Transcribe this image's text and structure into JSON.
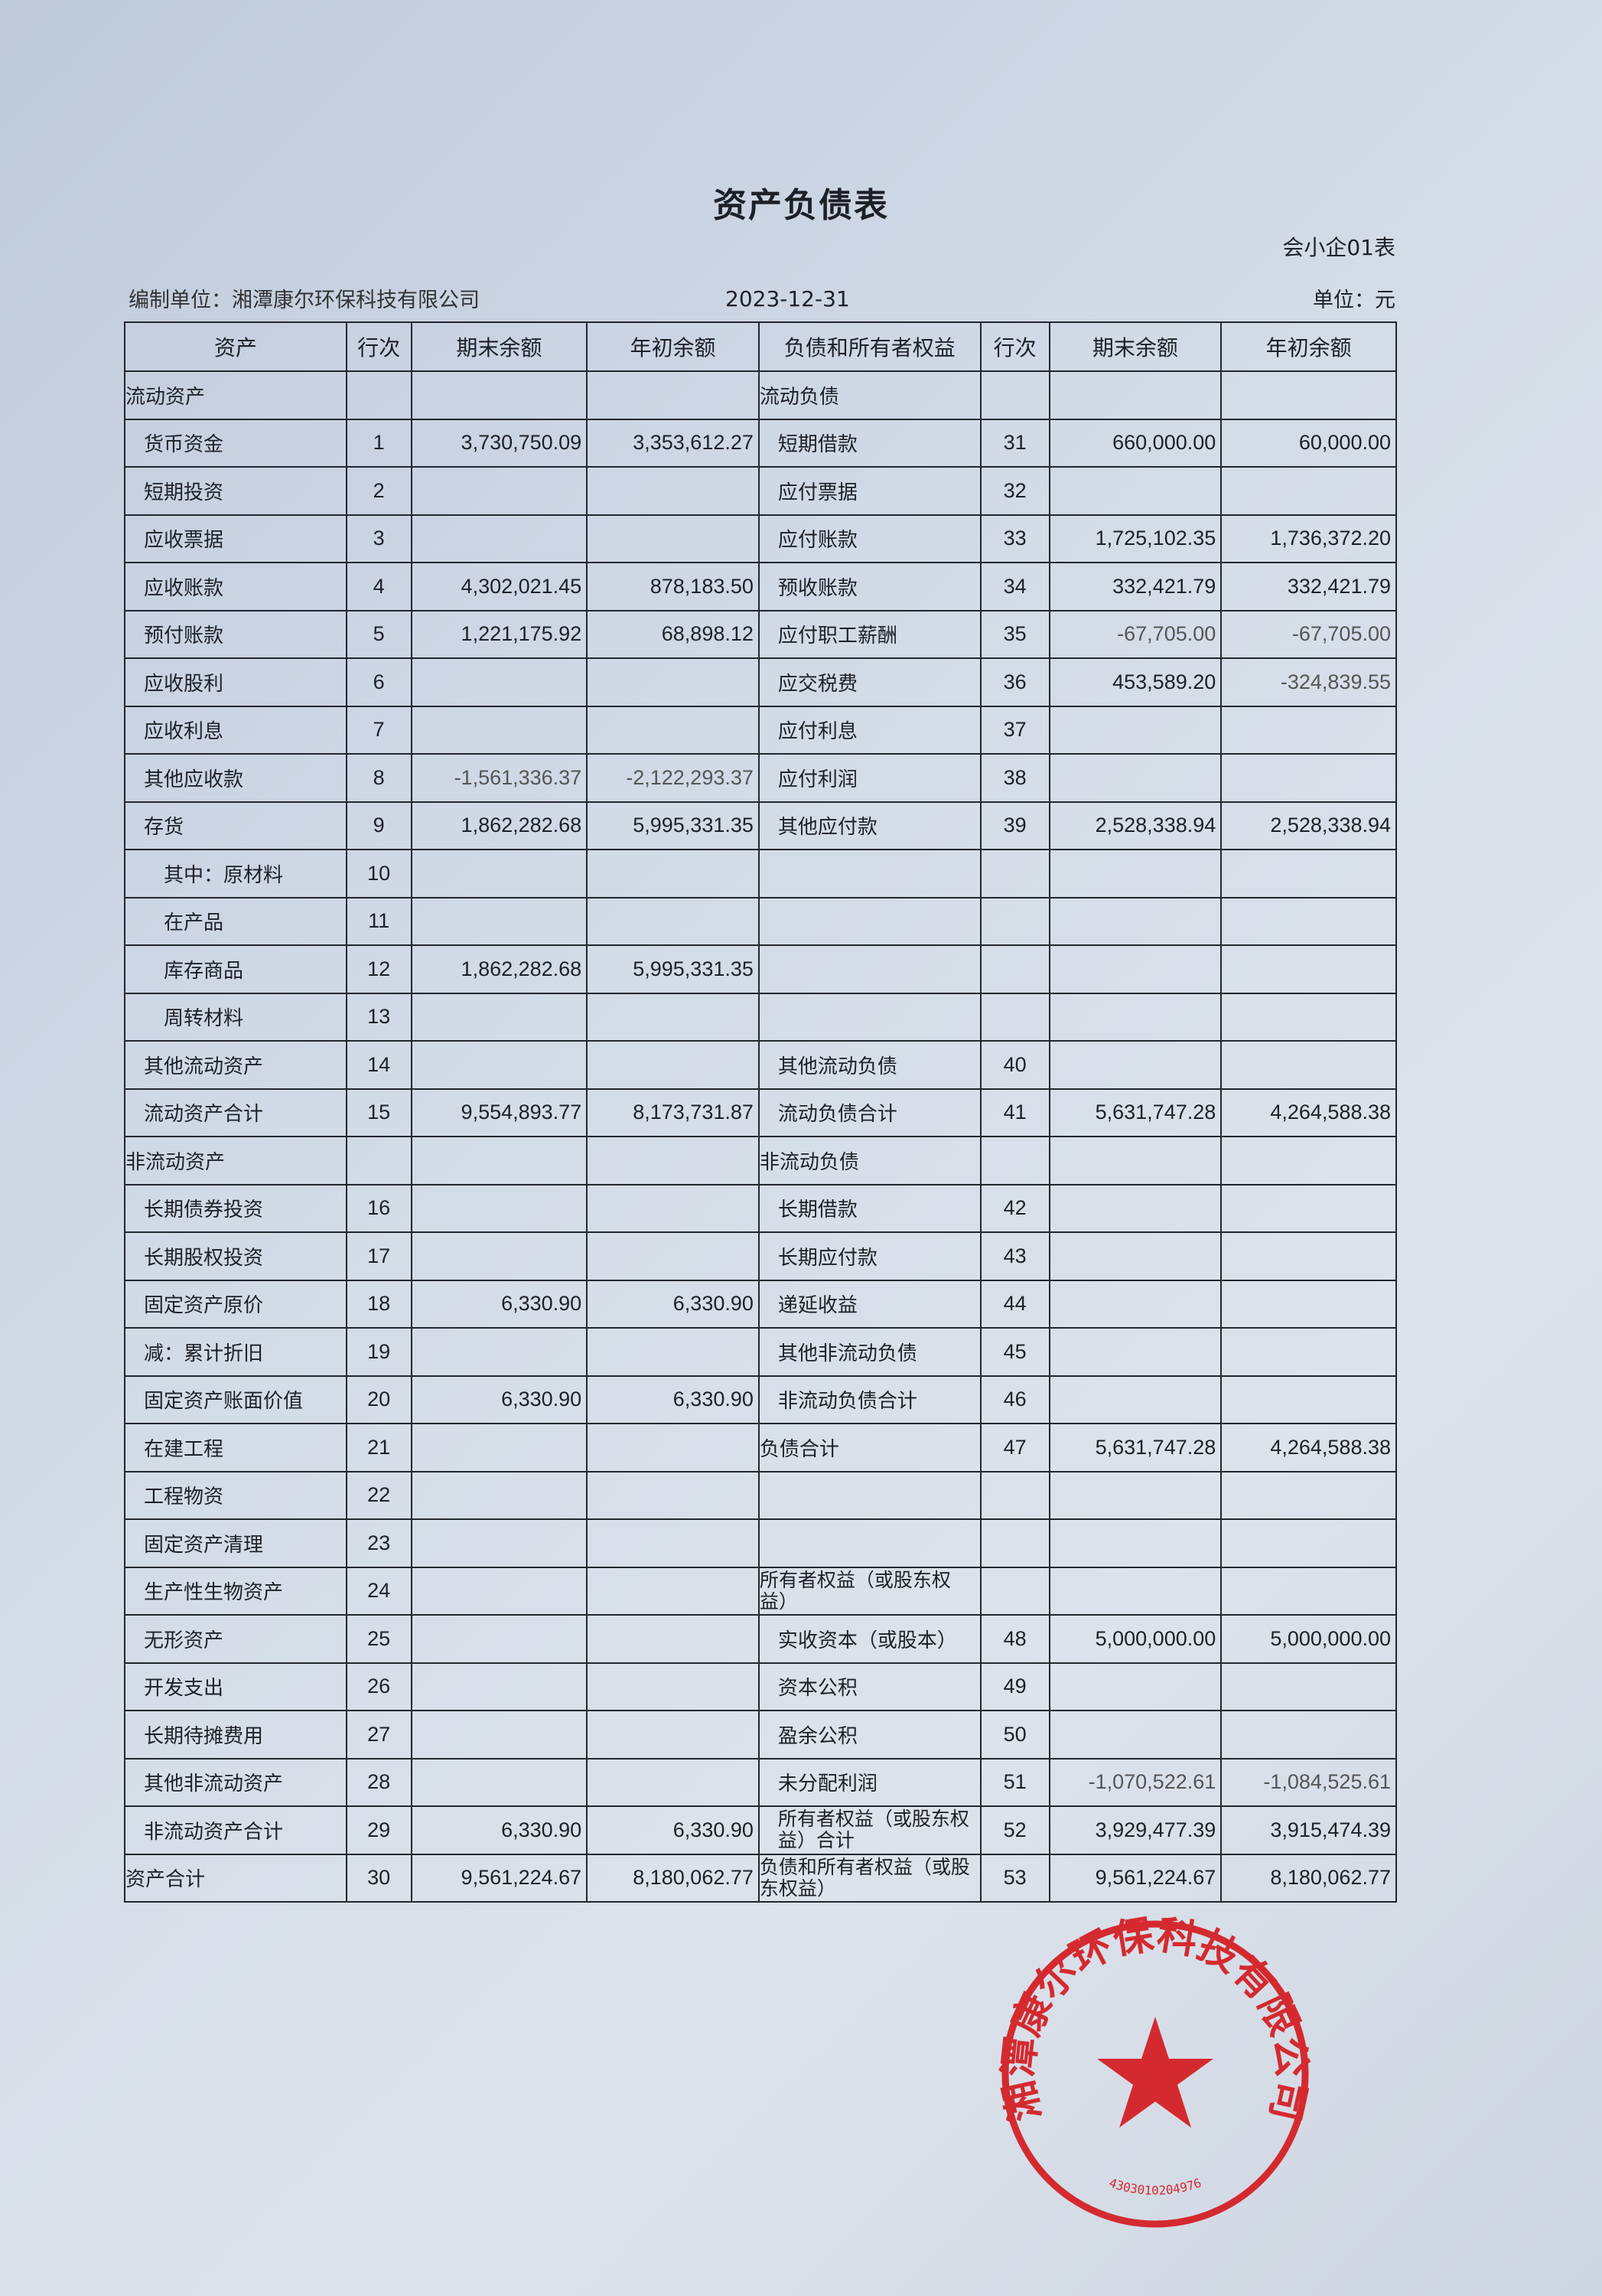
{
  "document": {
    "title": "资产负债表",
    "form_no": "会小企01表",
    "preparer": "编制单位：湘潭康尔环保科技有限公司",
    "date": "2023-12-31",
    "unit": "单位：元"
  },
  "table": {
    "headers": [
      "资产",
      "行次",
      "期末余额",
      "年初余额",
      "负债和所有者权益",
      "行次",
      "期末余额",
      "年初余额"
    ],
    "rows": [
      [
        [
          "流动资产",
          "",
          "",
          ""
        ],
        [
          "流动负债",
          "",
          "",
          ""
        ]
      ],
      [
        [
          "货币资金",
          "1",
          "3,730,750.09",
          "3,353,612.27"
        ],
        [
          "短期借款",
          "31",
          "660,000.00",
          "60,000.00"
        ]
      ],
      [
        [
          "短期投资",
          "2",
          "",
          ""
        ],
        [
          "应付票据",
          "32",
          "",
          ""
        ]
      ],
      [
        [
          "应收票据",
          "3",
          "",
          ""
        ],
        [
          "应付账款",
          "33",
          "1,725,102.35",
          "1,736,372.20"
        ]
      ],
      [
        [
          "应收账款",
          "4",
          "4,302,021.45",
          "878,183.50"
        ],
        [
          "预收账款",
          "34",
          "332,421.79",
          "332,421.79"
        ]
      ],
      [
        [
          "预付账款",
          "5",
          "1,221,175.92",
          "68,898.12"
        ],
        [
          "应付职工薪酬",
          "35",
          "-67,705.00",
          "-67,705.00"
        ]
      ],
      [
        [
          "应收股利",
          "6",
          "",
          ""
        ],
        [
          "应交税费",
          "36",
          "453,589.20",
          "-324,839.55"
        ]
      ],
      [
        [
          "应收利息",
          "7",
          "",
          ""
        ],
        [
          "应付利息",
          "37",
          "",
          ""
        ]
      ],
      [
        [
          "其他应收款",
          "8",
          "-1,561,336.37",
          "-2,122,293.37"
        ],
        [
          "应付利润",
          "38",
          "",
          ""
        ]
      ],
      [
        [
          "存货",
          "9",
          "1,862,282.68",
          "5,995,331.35"
        ],
        [
          "其他应付款",
          "39",
          "2,528,338.94",
          "2,528,338.94"
        ]
      ],
      [
        [
          "其中：原材料",
          "10",
          "",
          ""
        ],
        [
          "",
          "",
          "",
          ""
        ]
      ],
      [
        [
          "在产品",
          "11",
          "",
          ""
        ],
        [
          "",
          "",
          "",
          ""
        ]
      ],
      [
        [
          "库存商品",
          "12",
          "1,862,282.68",
          "5,995,331.35"
        ],
        [
          "",
          "",
          "",
          ""
        ]
      ],
      [
        [
          "周转材料",
          "13",
          "",
          ""
        ],
        [
          "",
          "",
          "",
          ""
        ]
      ],
      [
        [
          "其他流动资产",
          "14",
          "",
          ""
        ],
        [
          "其他流动负债",
          "40",
          "",
          ""
        ]
      ],
      [
        [
          "流动资产合计",
          "15",
          "9,554,893.77",
          "8,173,731.87"
        ],
        [
          "流动负债合计",
          "41",
          "5,631,747.28",
          "4,264,588.38"
        ]
      ],
      [
        [
          "非流动资产",
          "",
          "",
          ""
        ],
        [
          "非流动负债",
          "",
          "",
          ""
        ]
      ],
      [
        [
          "长期债券投资",
          "16",
          "",
          ""
        ],
        [
          "长期借款",
          "42",
          "",
          ""
        ]
      ],
      [
        [
          "长期股权投资",
          "17",
          "",
          ""
        ],
        [
          "长期应付款",
          "43",
          "",
          ""
        ]
      ],
      [
        [
          "固定资产原价",
          "18",
          "6,330.90",
          "6,330.90"
        ],
        [
          "递延收益",
          "44",
          "",
          ""
        ]
      ],
      [
        [
          "减：累计折旧",
          "19",
          "",
          ""
        ],
        [
          "其他非流动负债",
          "45",
          "",
          ""
        ]
      ],
      [
        [
          "固定资产账面价值",
          "20",
          "6,330.90",
          "6,330.90"
        ],
        [
          "非流动负债合计",
          "46",
          "",
          ""
        ]
      ],
      [
        [
          "在建工程",
          "21",
          "",
          ""
        ],
        [
          "负债合计",
          "47",
          "5,631,747.28",
          "4,264,588.38"
        ]
      ],
      [
        [
          "工程物资",
          "22",
          "",
          ""
        ],
        [
          "",
          "",
          "",
          ""
        ]
      ],
      [
        [
          "固定资产清理",
          "23",
          "",
          ""
        ],
        [
          "",
          "",
          "",
          ""
        ]
      ],
      [
        [
          "生产性生物资产",
          "24",
          "",
          ""
        ],
        [
          "所有者权益（或股东权益）",
          "",
          "",
          ""
        ]
      ],
      [
        [
          "无形资产",
          "25",
          "",
          ""
        ],
        [
          "实收资本（或股本）",
          "48",
          "5,000,000.00",
          "5,000,000.00"
        ]
      ],
      [
        [
          "开发支出",
          "26",
          "",
          ""
        ],
        [
          "资本公积",
          "49",
          "",
          ""
        ]
      ],
      [
        [
          "长期待摊费用",
          "27",
          "",
          ""
        ],
        [
          "盈余公积",
          "50",
          "",
          ""
        ]
      ],
      [
        [
          "其他非流动资产",
          "28",
          "",
          ""
        ],
        [
          "未分配利润",
          "51",
          "-1,070,522.61",
          "-1,084,525.61"
        ]
      ],
      [
        [
          "非流动资产合计",
          "29",
          "6,330.90",
          "6,330.90"
        ],
        [
          "所有者权益（或股东权益）合计",
          "52",
          "3,929,477.39",
          "3,915,474.39"
        ]
      ],
      [
        [
          "资产合计",
          "30",
          "9,561,224.67",
          "8,180,062.77"
        ],
        [
          "负债和所有者权益（或股东权益）",
          "53",
          "9,561,224.67",
          "8,180,062.77"
        ]
      ]
    ]
  },
  "stamp": {
    "text": "湘潭康尔环保科技有限公司",
    "code": "4303010204976",
    "color": "#d42a2f"
  }
}
